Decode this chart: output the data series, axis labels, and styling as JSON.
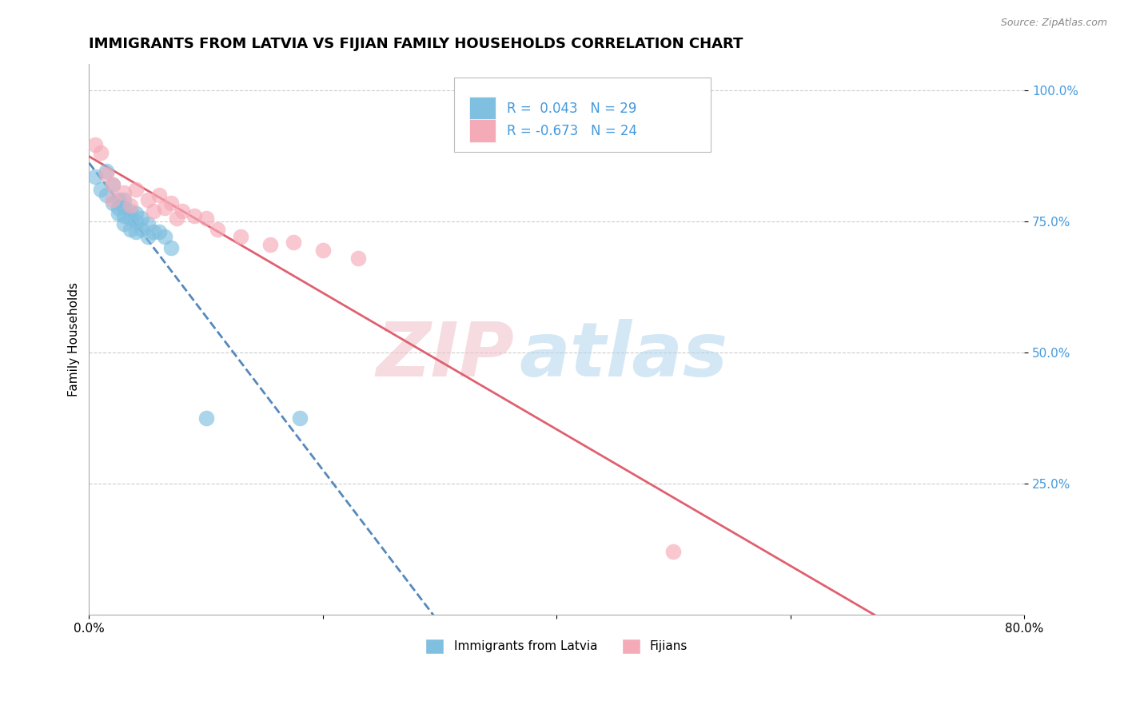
{
  "title": "IMMIGRANTS FROM LATVIA VS FIJIAN FAMILY HOUSEHOLDS CORRELATION CHART",
  "source": "Source: ZipAtlas.com",
  "ylabel": "Family Households",
  "x_min": 0.0,
  "x_max": 0.8,
  "y_min": 0.0,
  "y_max": 1.05,
  "x_ticks": [
    0.0,
    0.2,
    0.4,
    0.6,
    0.8
  ],
  "x_tick_labels": [
    "0.0%",
    "",
    "",
    "",
    "80.0%"
  ],
  "y_ticks": [
    0.25,
    0.5,
    0.75,
    1.0
  ],
  "y_tick_labels": [
    "25.0%",
    "50.0%",
    "75.0%",
    "100.0%"
  ],
  "legend_label1": "Immigrants from Latvia",
  "legend_label2": "Fijians",
  "r1": 0.043,
  "n1": 29,
  "r2": -0.673,
  "n2": 24,
  "color_blue": "#7fbfdf",
  "color_pink": "#f5aab8",
  "color_blue_line": "#5588bb",
  "color_pink_line": "#e06070",
  "color_text_blue": "#4499dd",
  "watermark_zip": "ZIP",
  "watermark_atlas": "atlas",
  "blue_scatter_x": [
    0.005,
    0.01,
    0.015,
    0.015,
    0.02,
    0.02,
    0.025,
    0.025,
    0.025,
    0.03,
    0.03,
    0.03,
    0.03,
    0.035,
    0.035,
    0.035,
    0.04,
    0.04,
    0.04,
    0.045,
    0.045,
    0.05,
    0.05,
    0.055,
    0.06,
    0.065,
    0.07,
    0.1,
    0.18
  ],
  "blue_scatter_y": [
    0.835,
    0.81,
    0.845,
    0.8,
    0.82,
    0.785,
    0.79,
    0.775,
    0.765,
    0.79,
    0.775,
    0.76,
    0.745,
    0.77,
    0.755,
    0.735,
    0.765,
    0.75,
    0.73,
    0.755,
    0.735,
    0.745,
    0.72,
    0.73,
    0.73,
    0.72,
    0.7,
    0.375,
    0.375
  ],
  "pink_scatter_x": [
    0.005,
    0.01,
    0.015,
    0.02,
    0.02,
    0.03,
    0.035,
    0.04,
    0.05,
    0.055,
    0.06,
    0.065,
    0.07,
    0.075,
    0.08,
    0.09,
    0.1,
    0.11,
    0.13,
    0.155,
    0.175,
    0.2,
    0.23,
    0.5
  ],
  "pink_scatter_y": [
    0.895,
    0.88,
    0.84,
    0.82,
    0.79,
    0.805,
    0.78,
    0.81,
    0.79,
    0.77,
    0.8,
    0.775,
    0.785,
    0.755,
    0.77,
    0.76,
    0.755,
    0.735,
    0.72,
    0.705,
    0.71,
    0.695,
    0.68,
    0.12
  ],
  "title_fontsize": 13,
  "axis_label_fontsize": 11,
  "tick_fontsize": 11,
  "legend_fontsize": 11,
  "r_legend_fontsize": 12
}
